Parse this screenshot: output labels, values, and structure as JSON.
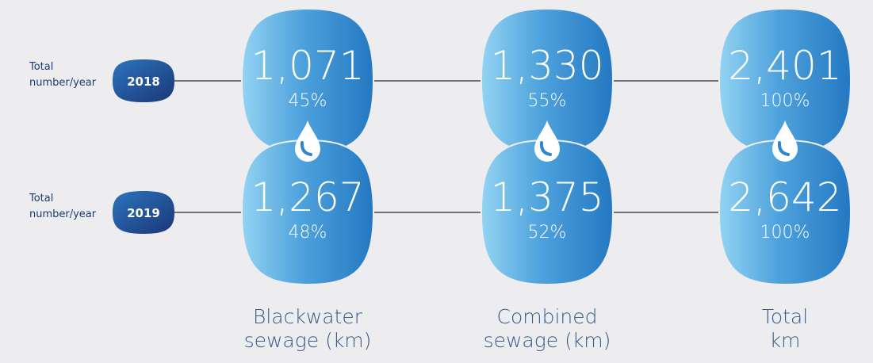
{
  "rows": [
    {
      "label": "Total number/year",
      "year": "2018",
      "cells": [
        {
          "value": "1,071",
          "share": "45%"
        },
        {
          "value": "1,330",
          "share": "55%"
        },
        {
          "value": "2,401",
          "share": "100%"
        }
      ]
    },
    {
      "label": "Total number/year",
      "year": "2019",
      "cells": [
        {
          "value": "1,267",
          "share": "48%"
        },
        {
          "value": "1,375",
          "share": "52%"
        },
        {
          "value": "2,642",
          "share": "100%"
        }
      ]
    }
  ],
  "columns": [
    {
      "lines": [
        "Blackwater",
        "sewage (km)"
      ]
    },
    {
      "lines": [
        "Combined",
        "sewage (km)"
      ]
    },
    {
      "lines": [
        "Total",
        "km"
      ]
    }
  ]
}
